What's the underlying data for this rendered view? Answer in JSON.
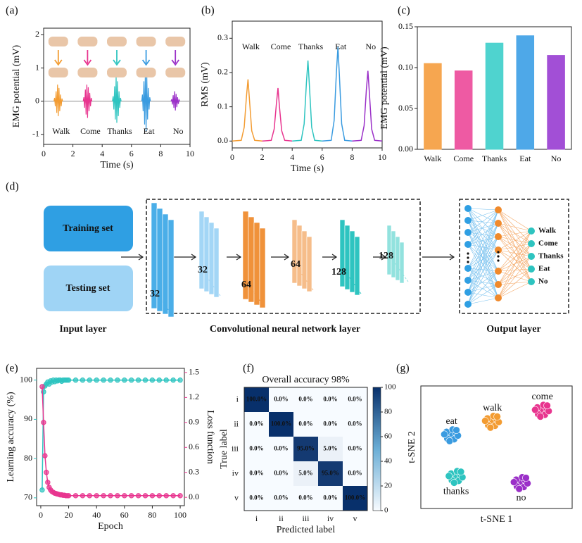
{
  "chart_data": [
    {
      "panel": "(a)",
      "type": "line",
      "xlabel": "Time (s)",
      "ylabel": "EMG potential (mV)",
      "xlim": [
        0,
        10
      ],
      "ylim": [
        -1.3,
        2.2
      ],
      "xticks": [
        0,
        2,
        4,
        6,
        8,
        10
      ],
      "yticks": [
        -1,
        0,
        1,
        2
      ],
      "series": [
        {
          "color": "#9a9a9a",
          "x": [
            0,
            10
          ],
          "values": [
            0,
            0
          ]
        },
        {
          "name": "Walk",
          "color": "#f39c32",
          "x": [
            0.7,
            0.75,
            0.8,
            0.85,
            0.9,
            0.95,
            1,
            1.05,
            1.1,
            1.15,
            1.2,
            1.25,
            1.3
          ],
          "values": [
            0,
            0.1,
            -0.15,
            0.3,
            -0.35,
            0.5,
            -0.45,
            0.4,
            -0.3,
            0.2,
            -0.15,
            0.08,
            0
          ]
        },
        {
          "name": "Come",
          "color": "#e8358f",
          "x": [
            2.7,
            2.75,
            2.8,
            2.85,
            2.9,
            2.95,
            3,
            3.05,
            3.1,
            3.15,
            3.2,
            3.25,
            3.3
          ],
          "values": [
            0,
            0.12,
            -0.2,
            0.35,
            -0.4,
            0.5,
            -0.5,
            0.42,
            -0.3,
            0.25,
            -0.15,
            0.1,
            0
          ]
        },
        {
          "name": "Thanks",
          "color": "#2ec4c0",
          "x": [
            4.7,
            4.75,
            4.8,
            4.85,
            4.9,
            4.95,
            5,
            5.05,
            5.1,
            5.15,
            5.2,
            5.25,
            5.3
          ],
          "values": [
            0,
            0.15,
            -0.25,
            0.45,
            -0.55,
            0.75,
            -0.65,
            0.6,
            -0.45,
            0.3,
            -0.2,
            0.1,
            0
          ]
        },
        {
          "name": "Eat",
          "color": "#3a9be0",
          "x": [
            6.7,
            6.75,
            6.8,
            6.85,
            6.9,
            6.95,
            7,
            7.05,
            7.1,
            7.15,
            7.2,
            7.25,
            7.3
          ],
          "values": [
            0,
            0.2,
            -0.3,
            0.6,
            -0.7,
            1.0,
            -0.9,
            0.75,
            -0.55,
            0.4,
            -0.25,
            0.12,
            0
          ]
        },
        {
          "name": "No",
          "color": "#9b30c8",
          "x": [
            8.7,
            8.75,
            8.8,
            8.85,
            8.9,
            8.95,
            9,
            9.05,
            9.1,
            9.15,
            9.2,
            9.25,
            9.3
          ],
          "values": [
            0,
            0.06,
            -0.1,
            0.18,
            -0.2,
            0.3,
            -0.28,
            0.22,
            -0.18,
            0.12,
            -0.08,
            0.04,
            0
          ]
        }
      ]
    },
    {
      "panel": "(b)",
      "type": "line",
      "xlabel": "Time (s)",
      "ylabel": "RMS (mV)",
      "xlim": [
        0,
        10
      ],
      "ylim": [
        -0.02,
        0.35
      ],
      "xticks": [
        0,
        2,
        4,
        6,
        8,
        10
      ],
      "yticks": [
        {
          "value": 0,
          "label": "0.0"
        },
        {
          "value": 0.1,
          "label": "0.1"
        },
        {
          "value": 0.2,
          "label": "0.2"
        },
        {
          "value": 0.3,
          "label": "0.3"
        }
      ],
      "series": [
        {
          "name": "Walk",
          "color": "#f39c32",
          "x": [
            0,
            0.6,
            0.8,
            0.95,
            1.05,
            1.15,
            1.3,
            1.5,
            2
          ],
          "values": [
            0,
            0.002,
            0.04,
            0.13,
            0.18,
            0.12,
            0.03,
            0.002,
            0
          ]
        },
        {
          "name": "Come",
          "color": "#e8358f",
          "x": [
            2,
            2.6,
            2.8,
            2.95,
            3.05,
            3.15,
            3.3,
            3.5,
            4
          ],
          "values": [
            0,
            0.002,
            0.035,
            0.11,
            0.155,
            0.1,
            0.03,
            0.002,
            0
          ]
        },
        {
          "name": "Thanks",
          "color": "#2ec4c0",
          "x": [
            4,
            4.6,
            4.8,
            4.95,
            5.05,
            5.15,
            5.3,
            5.5,
            6
          ],
          "values": [
            0,
            0.002,
            0.05,
            0.17,
            0.235,
            0.16,
            0.04,
            0.002,
            0
          ]
        },
        {
          "name": "Eat",
          "color": "#3a9be0",
          "x": [
            6,
            6.6,
            6.8,
            6.95,
            7.05,
            7.15,
            7.3,
            7.5,
            8
          ],
          "values": [
            0,
            0.002,
            0.06,
            0.2,
            0.275,
            0.19,
            0.05,
            0.002,
            0
          ]
        },
        {
          "name": "No",
          "color": "#9b30c8",
          "x": [
            8,
            8.6,
            8.8,
            8.95,
            9.05,
            9.15,
            9.3,
            9.5,
            10
          ],
          "values": [
            0,
            0.002,
            0.045,
            0.15,
            0.205,
            0.14,
            0.035,
            0.002,
            0
          ]
        }
      ]
    },
    {
      "panel": "(c)",
      "type": "bar",
      "ylabel": "EMG potential (mV)",
      "categories": [
        "Walk",
        "Come",
        "Thanks",
        "Eat",
        "No"
      ],
      "values": [
        0.105,
        0.096,
        0.13,
        0.139,
        0.115
      ],
      "colors": [
        "#f6a650",
        "#ee5aa3",
        "#4fd3cf",
        "#4ea8e8",
        "#a24fd6"
      ],
      "ylim": [
        0,
        0.15
      ],
      "yticks": [
        {
          "value": 0,
          "label": "0.00"
        },
        {
          "value": 0.05,
          "label": "0.05"
        },
        {
          "value": 0.1,
          "label": "0.10"
        },
        {
          "value": 0.15,
          "label": "0.15"
        }
      ]
    },
    {
      "panel": "(e)",
      "type": "line",
      "xlabel": "Epoch",
      "ylabel": "Learning accuracy (%)",
      "y2label": "Loss function",
      "xlim": [
        -3,
        103
      ],
      "xticks": [
        0,
        20,
        40,
        60,
        80,
        100
      ],
      "ylim": [
        68,
        103
      ],
      "yticks": [
        70,
        80,
        90,
        100
      ],
      "y2lim": [
        -0.1,
        1.55
      ],
      "y2ticks": [
        {
          "value": 0,
          "label": "0.0"
        },
        {
          "value": 0.3,
          "label": "0.3"
        },
        {
          "value": 0.6,
          "label": "0.6"
        },
        {
          "value": 0.9,
          "label": "0.9"
        },
        {
          "value": 1.2,
          "label": "1.2"
        },
        {
          "value": 1.5,
          "label": "1.5"
        }
      ],
      "series": [
        {
          "color": "#2ec4c0",
          "x": [
            1,
            2,
            3,
            4,
            5,
            6,
            7,
            8,
            9,
            10,
            11,
            12,
            13,
            14,
            15,
            16,
            17,
            18,
            19,
            20,
            25,
            30,
            35,
            40,
            45,
            50,
            55,
            60,
            65,
            70,
            75,
            80,
            85,
            90,
            95,
            100
          ],
          "values": [
            72,
            97,
            98.5,
            99,
            99.5,
            99,
            99.8,
            99.5,
            100,
            99.6,
            100,
            99.8,
            100,
            100,
            99.7,
            100,
            100,
            100,
            100,
            100,
            100,
            100,
            100,
            100,
            100,
            100,
            100,
            100,
            100,
            100,
            100,
            100,
            100,
            100,
            100,
            100
          ]
        },
        {
          "color": "#e8358f",
          "axis": "y2",
          "x": [
            1,
            2,
            3,
            4,
            5,
            6,
            7,
            8,
            9,
            10,
            11,
            12,
            13,
            14,
            15,
            16,
            17,
            18,
            19,
            20,
            25,
            30,
            35,
            40,
            45,
            50,
            55,
            60,
            65,
            70,
            75,
            80,
            85,
            90,
            95,
            100
          ],
          "values": [
            1.33,
            0.9,
            0.5,
            0.3,
            0.18,
            0.12,
            0.09,
            0.07,
            0.06,
            0.05,
            0.045,
            0.04,
            0.035,
            0.03,
            0.03,
            0.025,
            0.025,
            0.02,
            0.02,
            0.02,
            0.02,
            0.02,
            0.02,
            0.02,
            0.02,
            0.02,
            0.02,
            0.02,
            0.02,
            0.02,
            0.02,
            0.02,
            0.02,
            0.02,
            0.02,
            0.02
          ]
        }
      ]
    },
    {
      "panel": "(f)",
      "type": "heatmap",
      "title": "Overall accuracy  98%",
      "title_color": "#e0201e",
      "xlabel": "Predicted label",
      "ylabel": "True label",
      "categories": [
        "i",
        "ii",
        "iii",
        "iv",
        "v"
      ],
      "values": [
        [
          100,
          0,
          0,
          0,
          0
        ],
        [
          0,
          100,
          0,
          0,
          0
        ],
        [
          0,
          0,
          95,
          5,
          0
        ],
        [
          0,
          0,
          5,
          95,
          0
        ],
        [
          0,
          0,
          0,
          0,
          100
        ]
      ],
      "value_labels": [
        [
          "100.0%",
          "0.0%",
          "0.0%",
          "0.0%",
          "0.0%"
        ],
        [
          "0.0%",
          "100.0%",
          "0.0%",
          "0.0%",
          "0.0%"
        ],
        [
          "0.0%",
          "0.0%",
          "95.0%",
          "5.0%",
          "0.0%"
        ],
        [
          "0.0%",
          "0.0%",
          "5.0%",
          "95.0%",
          "0.0%"
        ],
        [
          "0.0%",
          "0.0%",
          "0.0%",
          "0.0%",
          "100.0%"
        ]
      ],
      "zlim": [
        0,
        100
      ],
      "zticks": [
        0,
        20,
        40,
        60,
        80,
        100
      ],
      "colormap": [
        "#f7fbff",
        "#08306b"
      ]
    },
    {
      "panel": "(g)",
      "type": "scatter",
      "xlabel": "t-SNE 1",
      "ylabel": "t-SNE 2",
      "xlim": [
        0,
        10
      ],
      "ylim": [
        0,
        10
      ],
      "series": [
        {
          "name": "eat",
          "color": "#3a9be0",
          "x": [
            2,
            2.3,
            1.7,
            2.2,
            1.75,
            2.45,
            1.55,
            2.1,
            1.9,
            2.35
          ],
          "values": [
            6,
            6.2,
            6.25,
            5.65,
            5.7,
            5.95,
            6.05,
            6.45,
            5.5,
            6.4
          ]
        },
        {
          "name": "walk",
          "color": "#f39c32",
          "x": [
            4.7,
            5,
            4.4,
            4.9,
            4.45,
            5.15,
            4.25,
            4.8,
            4.6,
            5.05
          ],
          "values": [
            7.1,
            7.3,
            7.35,
            6.75,
            6.8,
            7.05,
            7.15,
            7.55,
            6.6,
            7.5
          ]
        },
        {
          "name": "come",
          "color": "#e8358f",
          "x": [
            8,
            8.3,
            7.7,
            8.2,
            7.75,
            8.45,
            7.55,
            8.1,
            7.9,
            8.35
          ],
          "values": [
            8,
            8.2,
            8.25,
            7.65,
            7.7,
            7.95,
            8.05,
            8.45,
            7.5,
            8.4
          ]
        },
        {
          "name": "thanks",
          "color": "#2ec4c0",
          "x": [
            2.3,
            2.6,
            2,
            2.5,
            2.05,
            2.75,
            1.85,
            2.4,
            2.2,
            2.65
          ],
          "values": [
            2.6,
            2.8,
            2.85,
            2.25,
            2.3,
            2.55,
            2.65,
            3.05,
            2.1,
            3
          ]
        },
        {
          "name": "no",
          "color": "#9b30c8",
          "x": [
            6.6,
            6.9,
            6.3,
            6.8,
            6.35,
            7.05,
            6.15,
            6.7,
            6.5,
            6.95
          ],
          "values": [
            2.1,
            2.3,
            2.35,
            1.75,
            1.8,
            2.05,
            2.15,
            2.55,
            1.6,
            2.5
          ]
        }
      ]
    }
  ],
  "diagram": {
    "panel": "(d)",
    "input": {
      "training": "Training set",
      "testing": "Testing set",
      "label": "Input layer"
    },
    "cnn": {
      "filters": [
        32,
        32,
        64,
        64,
        128,
        128
      ],
      "label": "Convolutional neural  network layer"
    },
    "output": {
      "classes": [
        "Walk",
        "Come",
        "Thanks",
        "Eat",
        "No"
      ],
      "label": "Output layer"
    }
  }
}
